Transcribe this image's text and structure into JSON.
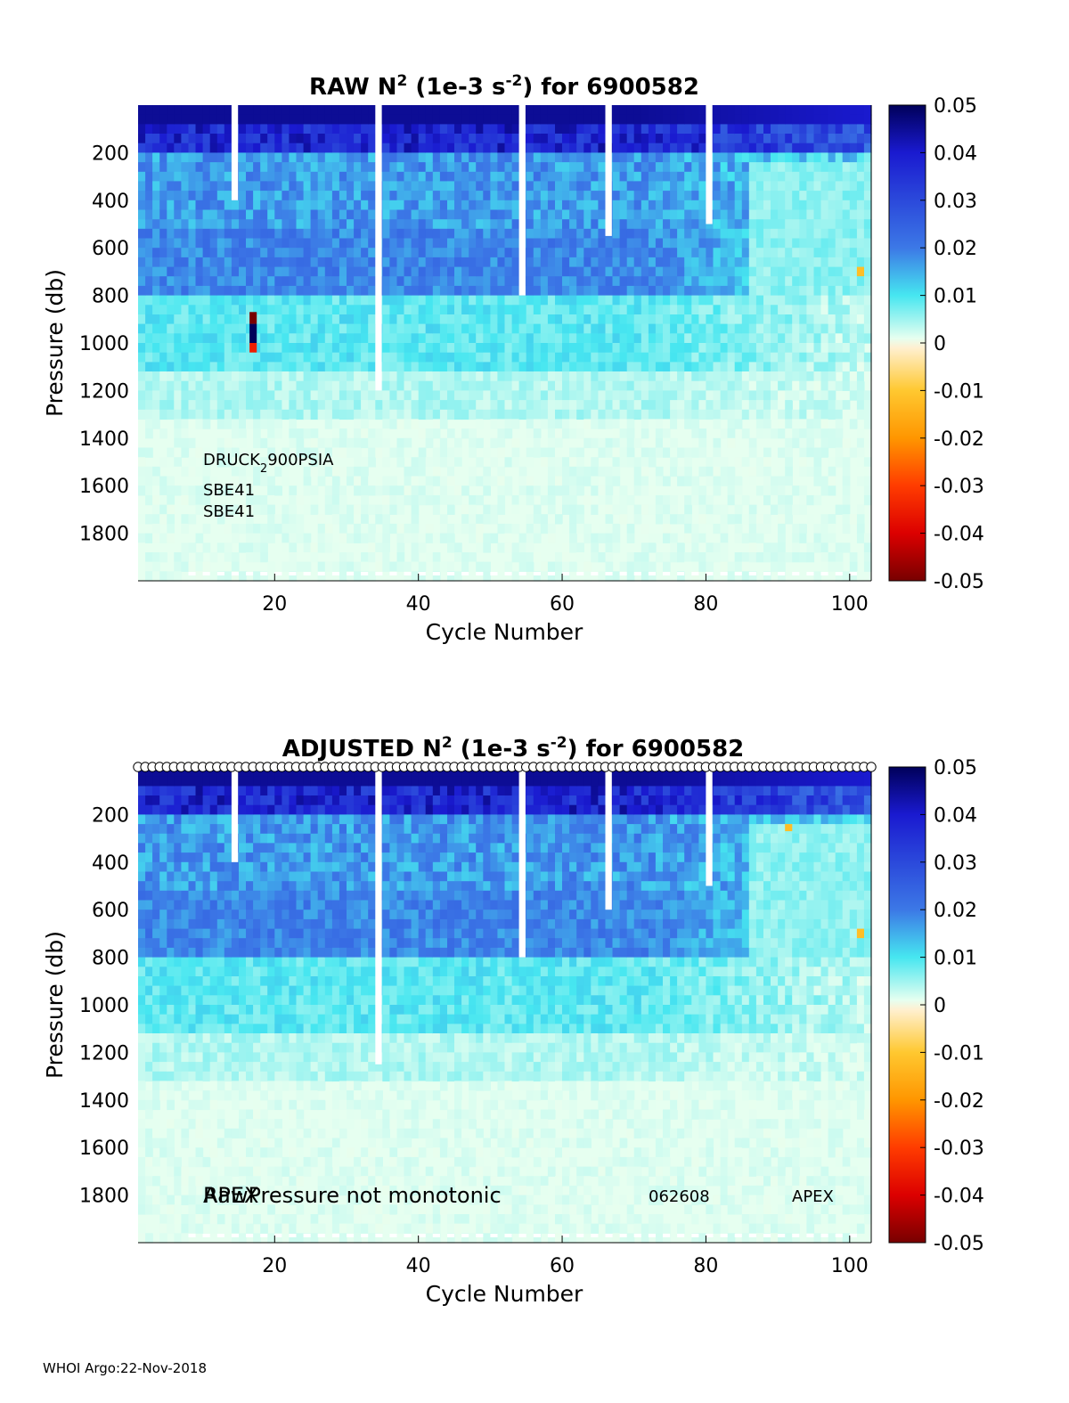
{
  "footer": "WHOI Argo:22-Nov-2018",
  "chart_data": [
    {
      "type": "heatmap",
      "title": {
        "main": "RAW N",
        "sup": "2",
        "mid": " (1e-3 s",
        "sup2": "-2",
        "end": ") for 6900582"
      },
      "xlabel": "Cycle Number",
      "ylabel": "Pressure (db)",
      "xlim": [
        1,
        103
      ],
      "ylim": [
        2000,
        0
      ],
      "yreversed": true,
      "xticks": [
        20,
        40,
        60,
        80,
        100
      ],
      "yticks": [
        200,
        400,
        600,
        800,
        1000,
        1200,
        1400,
        1600,
        1800
      ],
      "colorbar": {
        "clim": [
          -0.05,
          0.05
        ],
        "ticks": [
          "0.05",
          "0.04",
          "0.03",
          "0.02",
          "0.01",
          "0",
          "-0.01",
          "-0.02",
          "-0.03",
          "-0.04",
          "-0.05"
        ]
      },
      "annotations": [
        {
          "text": "DRUCK",
          "sub": "2",
          "rest": "900PSIA"
        },
        {
          "text": "SBE41"
        },
        {
          "text": "SBE41"
        }
      ],
      "gaps": [
        {
          "cycle": 14,
          "to_pressure": 400
        },
        {
          "cycle": 34,
          "to_pressure": 1200
        },
        {
          "cycle": 54,
          "to_pressure": 800
        },
        {
          "cycle": 66,
          "to_pressure": 550
        },
        {
          "cycle": 80,
          "to_pressure": 500
        }
      ],
      "anomalies": [
        {
          "cycle": 16.5,
          "p_from": 870,
          "p_to": 920,
          "value": -0.05
        },
        {
          "cycle": 16.5,
          "p_from": 920,
          "p_to": 1000,
          "value": 0.05
        },
        {
          "cycle": 16.5,
          "p_from": 1000,
          "p_to": 1040,
          "value": -0.035
        },
        {
          "cycle": 101,
          "p_from": 680,
          "p_to": 720,
          "value": -0.012
        },
        {
          "cycle": 101,
          "p_from": 720,
          "p_to": 760,
          "value": 0.008
        }
      ],
      "profile_depth_approx": 1980
    },
    {
      "type": "heatmap",
      "title": {
        "main": "ADJUSTED N",
        "sup": "2",
        "mid": " (1e-3 s",
        "sup2": "-2",
        "end": ") for 6900582"
      },
      "xlabel": "Cycle Number",
      "ylabel": "Pressure (db)",
      "xlim": [
        1,
        103
      ],
      "ylim": [
        2000,
        0
      ],
      "yreversed": true,
      "xticks": [
        20,
        40,
        60,
        80,
        100
      ],
      "yticks": [
        200,
        400,
        600,
        800,
        1000,
        1200,
        1400,
        1600,
        1800
      ],
      "colorbar": {
        "clim": [
          -0.05,
          0.05
        ],
        "ticks": [
          "0.05",
          "0.04",
          "0.03",
          "0.02",
          "0.01",
          "0",
          "-0.01",
          "-0.02",
          "-0.03",
          "-0.04",
          "-0.05"
        ]
      },
      "annotations": [
        {
          "text": "APEX"
        },
        {
          "text": "RawPressure not monotonic"
        },
        {
          "text": "062608"
        },
        {
          "text": "APEX"
        }
      ],
      "markers": "open-circles-at-top-for-each-cycle",
      "gaps": [
        {
          "cycle": 14,
          "to_pressure": 400
        },
        {
          "cycle": 34,
          "to_pressure": 1250
        },
        {
          "cycle": 54,
          "to_pressure": 800
        },
        {
          "cycle": 66,
          "to_pressure": 600
        },
        {
          "cycle": 80,
          "to_pressure": 500
        }
      ],
      "anomalies": [
        {
          "cycle": 91,
          "p_from": 240,
          "p_to": 270,
          "value": -0.012
        },
        {
          "cycle": 101,
          "p_from": 680,
          "p_to": 720,
          "value": -0.012
        },
        {
          "cycle": 101,
          "p_from": 720,
          "p_to": 760,
          "value": 0.008
        }
      ],
      "profile_depth_approx": 1980
    }
  ]
}
